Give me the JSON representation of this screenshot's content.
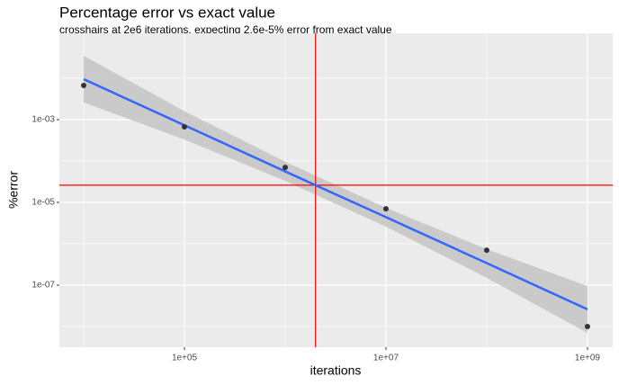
{
  "chart_data": {
    "type": "scatter",
    "title": "Percentage error vs exact value",
    "subtitle": "crosshairs at 2e6 iterations, expecting 2.6e-5% error from exact value",
    "x_label": "iterations",
    "y_label": "%error",
    "log_x": true,
    "log_y": true,
    "grid": true,
    "xlim": [
      5740,
      1780000000
    ],
    "ylim": [
      3.16e-09,
      0.122
    ],
    "xticks": [
      {
        "value": 100000,
        "label": "1e+05"
      },
      {
        "value": 10000000,
        "label": "1e+07"
      },
      {
        "value": 1000000000,
        "label": "1e+09"
      }
    ],
    "yticks": [
      {
        "value": 1e-07,
        "label": "1e-07"
      },
      {
        "value": 1e-05,
        "label": "1e-05"
      },
      {
        "value": 0.001,
        "label": "1e-03"
      }
    ],
    "minor_xticks": [
      10000,
      1000000,
      100000000
    ],
    "minor_yticks": [
      1e-08,
      1e-06,
      0.0001,
      0.01
    ],
    "x": [
      10000,
      100000,
      1000000,
      10000000,
      100000000,
      1000000000
    ],
    "values": [
      0.0067,
      0.00067,
      7e-05,
      7e-06,
      7e-07,
      1e-08
    ],
    "color": "#333333",
    "fit": {
      "color": "#3366ff",
      "band_color": "#c4c4c4",
      "x": [
        10000,
        100000,
        1000000,
        10000000,
        100000000,
        1000000000
      ],
      "values": [
        0.0095,
        0.00073,
        5.6e-05,
        4.4e-06,
        3.4e-07,
        2.6e-08
      ],
      "lower": [
        0.0026,
        0.00033,
        3.3e-05,
        2.6e-06,
        1.5e-07,
        7e-09
      ],
      "upper": [
        0.035,
        0.0016,
        9.6e-05,
        7.4e-06,
        7.4e-07,
        9.5e-08
      ]
    },
    "crosshairs": {
      "x": 2000000,
      "y": 2.6e-05,
      "color": "#ff0000"
    }
  }
}
